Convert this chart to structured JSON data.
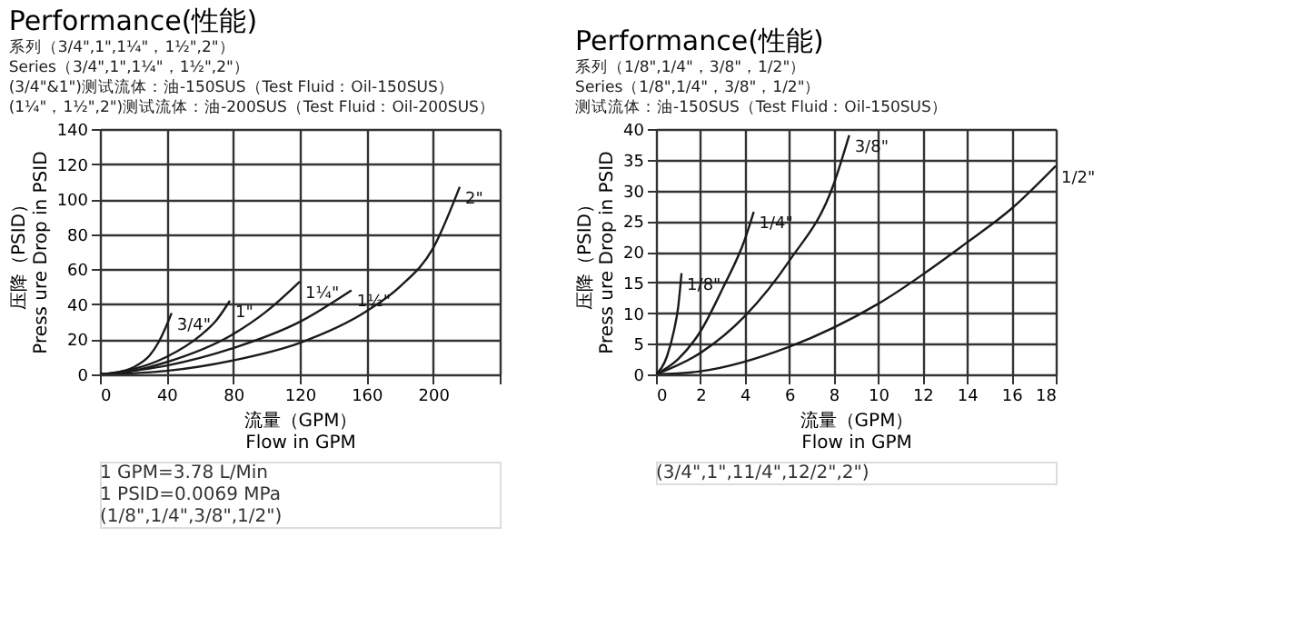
{
  "chart_data": [
    {
      "type": "line",
      "title": "Performance(性能)",
      "subtitle": [
        "系列（3/4\",1\",1¼\"，1½\",2\"）",
        "Series（3/4\",1\",1¼\"，1½\",2\"）",
        "(3/4\"&1\")测试流体：油-150SUS（Test Fluid：Oil-150SUS）",
        "(1¼\"，1½\",2\")测试流体：油-200SUS（Test Fluid：Oil-200SUS）"
      ],
      "xlabel": [
        "流量（GPM）",
        "Flow in GPM"
      ],
      "ylabel": [
        "压降（PSID）",
        "Press ure Drop in PSID"
      ],
      "xlim": [
        0,
        240
      ],
      "xticks": [
        0,
        40,
        80,
        120,
        160,
        200,
        {
          "value": 240,
          "label": null
        }
      ],
      "ylim": [
        0,
        140
      ],
      "yticks": [
        0,
        20,
        40,
        60,
        80,
        100,
        120,
        140
      ],
      "grid": true,
      "legend": false,
      "series": [
        {
          "name": "3/4\"",
          "color": "#1a1a1a",
          "x": [
            0,
            10,
            20,
            30,
            35,
            40,
            43
          ],
          "values": [
            0,
            1,
            4,
            11,
            18,
            28,
            35
          ]
        },
        {
          "name": "1\"",
          "color": "#1a1a1a",
          "x": [
            0,
            20,
            40,
            60,
            70,
            78
          ],
          "values": [
            0,
            3,
            10,
            22,
            31,
            42
          ]
        },
        {
          "name": "1¼\"",
          "color": "#1a1a1a",
          "x": [
            0,
            20,
            40,
            80,
            100,
            120
          ],
          "values": [
            0,
            2,
            7,
            23,
            36,
            53
          ]
        },
        {
          "name": "1½\"",
          "color": "#1a1a1a",
          "x": [
            0,
            40,
            80,
            120,
            151
          ],
          "values": [
            0,
            5,
            15,
            30,
            48
          ]
        },
        {
          "name": "2\"",
          "color": "#1a1a1a",
          "x": [
            0,
            40,
            80,
            120,
            160,
            180,
            200,
            216
          ],
          "values": [
            0,
            2,
            8,
            18,
            36,
            50,
            72,
            107
          ]
        }
      ],
      "annotations": [
        "1 GPM=3.78 L/Min",
        "1 PSID=0.0069 MPa",
        "(1/8\",1/4\",3/8\",1/2\")"
      ]
    },
    {
      "type": "line",
      "title": "Performance(性能)",
      "subtitle": [
        "系列（1/8\",1/4\"，3/8\"，1/2\"）",
        "Series（1/8\",1/4\"，3/8\"，1/2\"）",
        "测试流体：油-150SUS（Test Fluid：Oil-150SUS）"
      ],
      "xlabel": [
        "流量（GPM）",
        "Flow in GPM"
      ],
      "ylabel": [
        "压降（PSID）",
        "Press ure Drop in PSID"
      ],
      "xlim": [
        0,
        18
      ],
      "xticks": [
        0,
        2,
        4,
        6,
        8,
        10,
        12,
        14,
        16,
        18
      ],
      "ylim": [
        0,
        40
      ],
      "yticks": [
        0,
        5,
        10,
        15,
        20,
        25,
        30,
        35,
        40
      ],
      "grid": true,
      "legend": false,
      "series": [
        {
          "name": "1/8\"",
          "color": "#1a1a1a",
          "x": [
            0,
            0.5,
            0.8,
            1,
            1.15
          ],
          "values": [
            0,
            3,
            7,
            11,
            16.5
          ]
        },
        {
          "name": "1/4\"",
          "color": "#1a1a1a",
          "x": [
            0,
            1,
            2,
            3,
            4,
            4.4
          ],
          "values": [
            0,
            2.5,
            7,
            14,
            22,
            26.5
          ]
        },
        {
          "name": "3/8\"",
          "color": "#1a1a1a",
          "x": [
            0,
            2,
            4,
            6,
            8,
            8.7
          ],
          "values": [
            0,
            3.5,
            9.5,
            18.5,
            31,
            39
          ]
        },
        {
          "name": "1/2\"",
          "color": "#1a1a1a",
          "x": [
            0,
            2,
            6,
            10,
            14,
            16,
            18
          ],
          "values": [
            0,
            0.5,
            4.5,
            11.5,
            21.5,
            27,
            34
          ]
        }
      ],
      "annotations": [
        "(3/4\",1\",11/4\",12/2\",2\")"
      ]
    }
  ]
}
